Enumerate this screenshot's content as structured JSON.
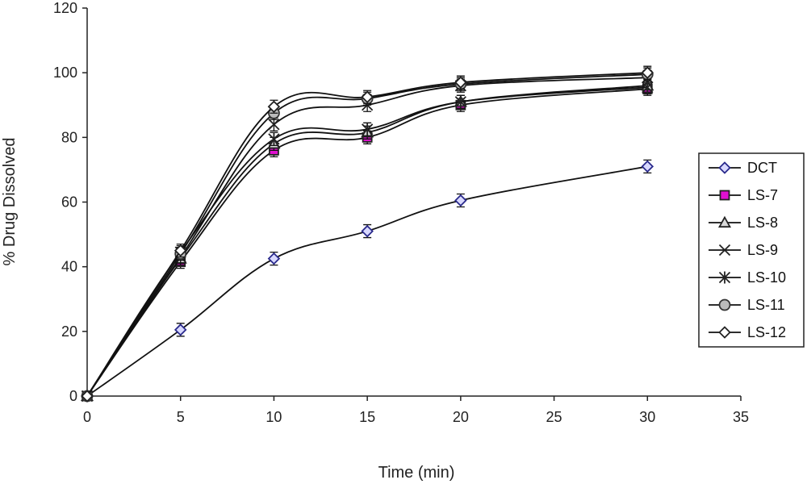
{
  "chart_data": {
    "type": "line",
    "xlabel": "Time (min)",
    "ylabel": "% Drug Dissolved",
    "xlim": [
      0,
      35
    ],
    "ylim": [
      0,
      120
    ],
    "x_ticks": [
      "0",
      "5",
      "10",
      "15",
      "20",
      "25",
      "30",
      "35"
    ],
    "y_ticks": [
      "0",
      "20",
      "40",
      "60",
      "80",
      "100",
      "120"
    ],
    "grid": false,
    "legend_position": "right",
    "x": [
      0,
      5,
      10,
      15,
      20,
      30
    ],
    "series": [
      {
        "name": "DCT",
        "marker": "diamond",
        "fill": "#d9d9ff",
        "stroke": "#2a2a8c",
        "values": [
          0,
          20.5,
          42.5,
          51,
          60.5,
          71
        ]
      },
      {
        "name": "LS-7",
        "marker": "square",
        "fill": "#e010d0",
        "stroke": "#222222",
        "values": [
          0,
          41.5,
          76,
          80,
          90,
          95
        ]
      },
      {
        "name": "LS-8",
        "marker": "triangle",
        "fill": "#d9d9d9",
        "stroke": "#222222",
        "values": [
          0,
          42.5,
          78,
          81.5,
          91,
          96
        ]
      },
      {
        "name": "LS-9",
        "marker": "x",
        "fill": "none",
        "stroke": "#222222",
        "values": [
          0,
          43,
          84,
          90,
          96,
          98.5
        ]
      },
      {
        "name": "LS-10",
        "marker": "star",
        "fill": "none",
        "stroke": "#222222",
        "values": [
          0,
          44.5,
          79.5,
          82.5,
          91,
          95.5
        ]
      },
      {
        "name": "LS-11",
        "marker": "circle",
        "fill": "#bbbbbb",
        "stroke": "#333333",
        "values": [
          0,
          44,
          87.5,
          92,
          96.5,
          99.5
        ]
      },
      {
        "name": "LS-12",
        "marker": "diamond",
        "fill": "#ffffff",
        "stroke": "#222222",
        "values": [
          0,
          45,
          89.5,
          92.5,
          97,
          100
        ]
      }
    ]
  }
}
